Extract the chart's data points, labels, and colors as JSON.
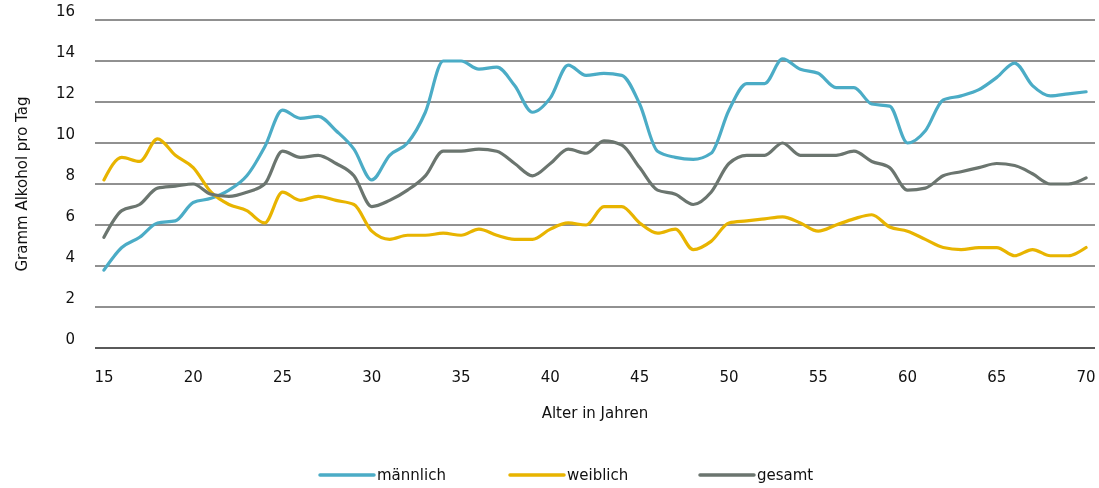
{
  "chart_data": {
    "type": "line",
    "xlabel": "Alter in Jahren",
    "ylabel": "Gramm Alkohol pro Tag",
    "x": [
      15,
      16,
      17,
      18,
      19,
      20,
      21,
      22,
      23,
      24,
      25,
      26,
      27,
      28,
      29,
      30,
      31,
      32,
      33,
      34,
      35,
      36,
      37,
      38,
      39,
      40,
      41,
      42,
      43,
      44,
      45,
      46,
      47,
      48,
      49,
      50,
      51,
      52,
      53,
      54,
      55,
      56,
      57,
      58,
      59,
      60,
      61,
      62,
      63,
      64,
      65,
      66,
      67,
      68,
      69,
      70
    ],
    "xlim": [
      14.5,
      70.5
    ],
    "xticks": [
      15,
      20,
      25,
      30,
      35,
      40,
      45,
      50,
      55,
      60,
      65,
      70
    ],
    "ylim": [
      0,
      16
    ],
    "yticks": [
      0,
      2,
      4,
      6,
      8,
      10,
      12,
      14,
      16
    ],
    "grid": "y",
    "legend": "bottom",
    "marker": "none",
    "line_style": "solid",
    "series": [
      {
        "name": "männlich",
        "color": "#4bacc6",
        "values": [
          3.8,
          4.9,
          5.4,
          6.1,
          6.2,
          7.1,
          7.3,
          7.7,
          8.4,
          9.8,
          11.6,
          11.2,
          11.3,
          10.6,
          9.7,
          8.2,
          9.4,
          10.0,
          11.5,
          14.0,
          14.0,
          13.6,
          13.7,
          12.8,
          11.5,
          12.2,
          13.8,
          13.3,
          13.4,
          13.3,
          11.9,
          9.6,
          9.3,
          9.2,
          9.5,
          11.6,
          12.9,
          12.9,
          14.1,
          13.6,
          13.4,
          12.7,
          12.7,
          11.9,
          11.8,
          10.0,
          10.6,
          12.1,
          12.3,
          12.6,
          13.2,
          13.9,
          12.8,
          12.3,
          12.4,
          12.5
        ]
      },
      {
        "name": "weiblich",
        "color": "#e8b400",
        "values": [
          8.2,
          9.3,
          9.1,
          10.2,
          9.4,
          8.8,
          7.6,
          7.0,
          6.7,
          6.1,
          7.6,
          7.2,
          7.4,
          7.2,
          7.0,
          5.7,
          5.3,
          5.5,
          5.5,
          5.6,
          5.5,
          5.8,
          5.5,
          5.3,
          5.3,
          5.8,
          6.1,
          6.0,
          6.9,
          6.9,
          6.1,
          5.6,
          5.8,
          4.8,
          5.2,
          6.1,
          6.2,
          6.3,
          6.4,
          6.1,
          5.7,
          6.0,
          6.3,
          6.5,
          5.9,
          5.7,
          5.3,
          4.9,
          4.8,
          4.9,
          4.9,
          4.5,
          4.8,
          4.5,
          4.5,
          4.9
        ]
      },
      {
        "name": "gesamt",
        "color": "#6b756f",
        "values": [
          5.4,
          6.7,
          7.0,
          7.8,
          7.9,
          8.0,
          7.5,
          7.4,
          7.6,
          8.0,
          9.6,
          9.3,
          9.4,
          9.0,
          8.4,
          6.9,
          7.2,
          7.7,
          8.4,
          9.6,
          9.6,
          9.7,
          9.6,
          9.0,
          8.4,
          9.0,
          9.7,
          9.5,
          10.1,
          9.9,
          8.8,
          7.7,
          7.5,
          7.0,
          7.6,
          9.0,
          9.4,
          9.4,
          10.0,
          9.4,
          9.4,
          9.4,
          9.6,
          9.1,
          8.8,
          7.7,
          7.8,
          8.4,
          8.6,
          8.8,
          9.0,
          8.9,
          8.5,
          8.0,
          8.0,
          8.3
        ]
      }
    ]
  }
}
